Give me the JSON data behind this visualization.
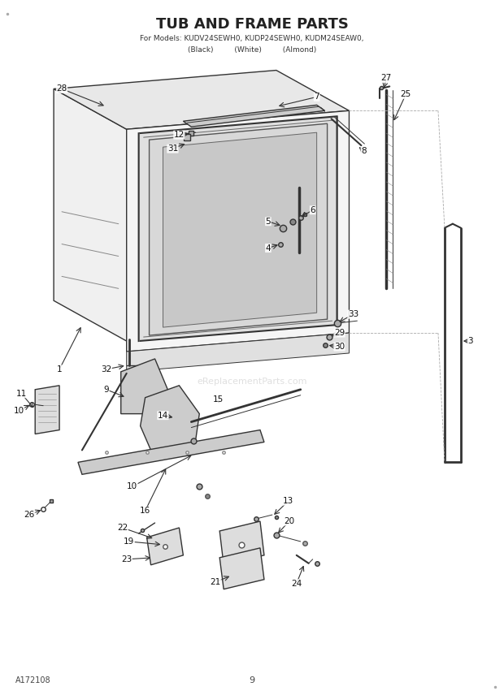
{
  "title_line1": "TUB AND FRAME PARTS",
  "title_line2": "For Models: KUDV24SEWH0, KUDP24SEWH0, KUDM24SEAW0,",
  "title_line3": "(Black)         (White)         (Almond)",
  "footer_left": "A172108",
  "footer_center": "9",
  "background_color": "#ffffff",
  "line_color": "#333333",
  "text_color": "#222222",
  "watermark": "eReplacementParts.com"
}
